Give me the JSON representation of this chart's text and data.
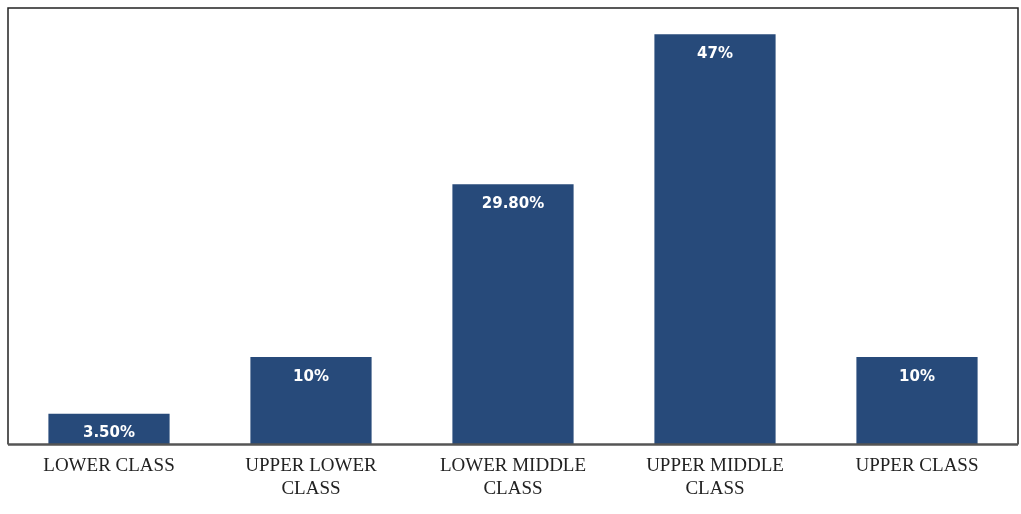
{
  "chart_data": {
    "type": "bar",
    "categories": [
      "LOWER CLASS",
      "UPPER LOWER CLASS",
      "LOWER MIDDLE CLASS",
      "UPPER MIDDLE CLASS",
      "UPPER CLASS"
    ],
    "values": [
      3.5,
      10,
      29.8,
      47,
      10
    ],
    "value_labels": [
      "3.50%",
      "10%",
      "29.80%",
      "47%",
      "10%"
    ],
    "color": "#274a7a",
    "grid": false,
    "legend": false
  }
}
